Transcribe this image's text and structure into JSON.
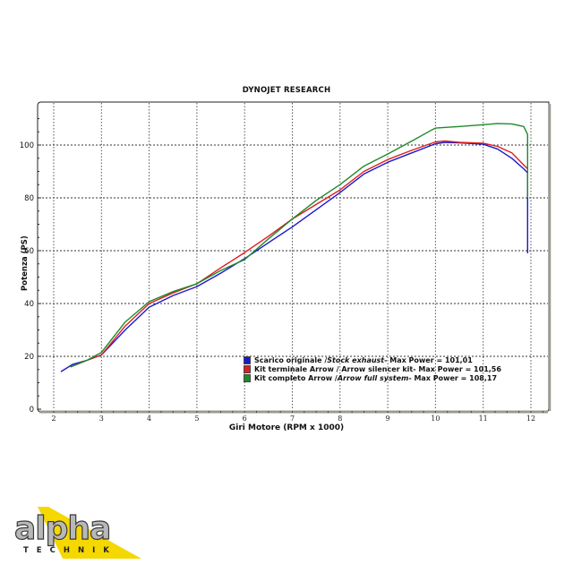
{
  "chart_data": {
    "type": "line",
    "title": "DYNOJET RESEARCH",
    "xlabel": "Giri Motore (RPM x 1000)",
    "ylabel": "Potenza (PS)",
    "xlim": [
      1.9,
      12.4
    ],
    "ylim": [
      0,
      115
    ],
    "xticks": [
      2,
      3,
      4,
      5,
      6,
      7,
      8,
      9,
      10,
      11,
      12
    ],
    "yticks": [
      0,
      20,
      40,
      60,
      80,
      100
    ],
    "grid": true,
    "legend_position": "lower right (inside plot)",
    "series": [
      {
        "name": "Scarico originale / Stock exhaust - Max Power = 101,01",
        "label_main": "Scarico originale / ",
        "label_italic": "Stock exhaust",
        "label_tail": " - Max Power = 101,01",
        "max_power": 101.01,
        "color": "#1a1acc",
        "x": [
          2.15,
          2.4,
          2.7,
          3.0,
          3.5,
          4.0,
          4.5,
          5.0,
          5.5,
          6.0,
          6.5,
          7.0,
          7.5,
          8.0,
          8.5,
          9.0,
          9.5,
          10.0,
          10.2,
          10.5,
          11.0,
          11.3,
          11.6,
          11.85,
          11.93,
          11.93
        ],
        "y": [
          14.2,
          17.0,
          18.5,
          20.5,
          30.0,
          38.6,
          43.0,
          46.4,
          51.5,
          57.0,
          63.0,
          69.0,
          75.5,
          82.0,
          89.0,
          93.5,
          97.0,
          100.5,
          101.0,
          100.8,
          100.3,
          98.5,
          95.0,
          91.0,
          89.5,
          59.0
        ]
      },
      {
        "name": "Kit terminale Arrow / Arrow silencer kit - Max Power = 101,56",
        "label_main": "Kit terminale Arrow / Arrow silencer kit",
        "label_italic": "",
        "label_tail": " - Max Power = 101,56",
        "max_power": 101.56,
        "color": "#dd1f1f",
        "x": [
          2.35,
          2.7,
          3.0,
          3.5,
          4.0,
          4.5,
          5.0,
          5.5,
          6.0,
          6.5,
          7.0,
          7.5,
          8.0,
          8.5,
          9.0,
          9.5,
          10.0,
          10.2,
          10.5,
          11.0,
          11.3,
          11.6,
          11.93
        ],
        "y": [
          16.0,
          18.5,
          20.5,
          31.5,
          40.0,
          44.0,
          47.5,
          53.5,
          59.3,
          65.5,
          72.0,
          77.5,
          83.0,
          90.0,
          94.5,
          98.0,
          101.2,
          101.56,
          101.0,
          100.7,
          99.5,
          97.0,
          91.0
        ]
      },
      {
        "name": "Kit completo Arrow / Arrow full system - Max Power = 108,17",
        "label_main": "Kit completo Arrow / ",
        "label_italic": "Arrow full system",
        "label_tail": " - Max Power = 108,17",
        "max_power": 108.17,
        "color": "#1f8a2a",
        "x": [
          2.35,
          2.7,
          3.0,
          3.5,
          4.0,
          4.5,
          5.0,
          5.5,
          6.0,
          6.5,
          7.0,
          7.5,
          8.0,
          8.5,
          9.0,
          9.5,
          9.9,
          10.0,
          10.5,
          11.0,
          11.3,
          11.6,
          11.85,
          11.93,
          11.93
        ],
        "y": [
          16.0,
          18.5,
          21.5,
          33.0,
          40.7,
          44.5,
          47.5,
          52.5,
          56.6,
          64.5,
          72.0,
          79.0,
          85.0,
          92.0,
          96.6,
          101.5,
          105.5,
          106.4,
          107.0,
          107.7,
          108.17,
          108.0,
          107.0,
          104.0,
          80.0
        ]
      }
    ]
  },
  "axis": {
    "y_tick_labels": [
      "0",
      "20",
      "40",
      "60",
      "80",
      "100"
    ],
    "x_tick_labels": [
      "2",
      "3",
      "4",
      "5",
      "6",
      "7",
      "8",
      "9",
      "10",
      "11",
      "12"
    ]
  },
  "logo": {
    "brand_top": "alpha",
    "brand_bottom": "TECHNIK",
    "accent_color": "#f5d800"
  }
}
